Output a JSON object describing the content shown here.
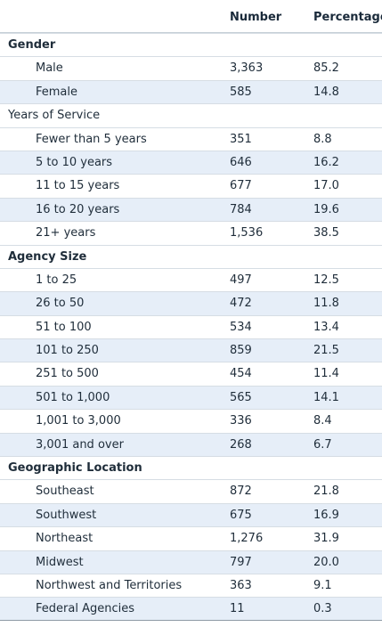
{
  "columns": {
    "number": "Number",
    "percentage": "Percentage"
  },
  "rows": [
    {
      "type": "section",
      "bold": true,
      "label": "Gender",
      "number": "",
      "percentage": ""
    },
    {
      "type": "item",
      "label": "Male",
      "number": "3,363",
      "percentage": "85.2"
    },
    {
      "type": "item",
      "label": "Female",
      "number": "585",
      "percentage": "14.8"
    },
    {
      "type": "section",
      "bold": false,
      "label": "Years of Service",
      "number": "",
      "percentage": ""
    },
    {
      "type": "item",
      "label": "Fewer than 5 years",
      "number": "351",
      "percentage": "8.8"
    },
    {
      "type": "item",
      "label": "5 to 10 years",
      "number": "646",
      "percentage": "16.2"
    },
    {
      "type": "item",
      "label": "11 to 15 years",
      "number": "677",
      "percentage": "17.0"
    },
    {
      "type": "item",
      "label": "16 to 20 years",
      "number": "784",
      "percentage": "19.6"
    },
    {
      "type": "item",
      "label": "21+ years",
      "number": "1,536",
      "percentage": "38.5"
    },
    {
      "type": "section",
      "bold": true,
      "label": "Agency Size",
      "number": "",
      "percentage": ""
    },
    {
      "type": "item",
      "label": "1 to 25",
      "number": "497",
      "percentage": "12.5"
    },
    {
      "type": "item",
      "label": "26 to 50",
      "number": "472",
      "percentage": "11.8"
    },
    {
      "type": "item",
      "label": "51 to 100",
      "number": "534",
      "percentage": "13.4"
    },
    {
      "type": "item",
      "label": "101 to 250",
      "number": "859",
      "percentage": "21.5"
    },
    {
      "type": "item",
      "label": "251 to 500",
      "number": "454",
      "percentage": "11.4"
    },
    {
      "type": "item",
      "label": "501 to 1,000",
      "number": "565",
      "percentage": "14.1"
    },
    {
      "type": "item",
      "label": "1,001 to 3,000",
      "number": "336",
      "percentage": "8.4"
    },
    {
      "type": "item",
      "label": "3,001 and over",
      "number": "268",
      "percentage": "6.7"
    },
    {
      "type": "section",
      "bold": true,
      "label": "Geographic Location",
      "number": "",
      "percentage": ""
    },
    {
      "type": "item",
      "label": "Southeast",
      "number": "872",
      "percentage": "21.8"
    },
    {
      "type": "item",
      "label": "Southwest",
      "number": "675",
      "percentage": "16.9"
    },
    {
      "type": "item",
      "label": "Northeast",
      "number": "1,276",
      "percentage": "31.9"
    },
    {
      "type": "item",
      "label": "Midwest",
      "number": "797",
      "percentage": "20.0"
    },
    {
      "type": "item",
      "label": "Northwest and Territories",
      "number": "363",
      "percentage": "9.1"
    },
    {
      "type": "item",
      "label": "Federal Agencies",
      "number": "11",
      "percentage": "0.3"
    }
  ],
  "colors": {
    "shaded_row": "#e6eef8",
    "text": "#1f2d3a",
    "rule": "#d6dde4"
  }
}
